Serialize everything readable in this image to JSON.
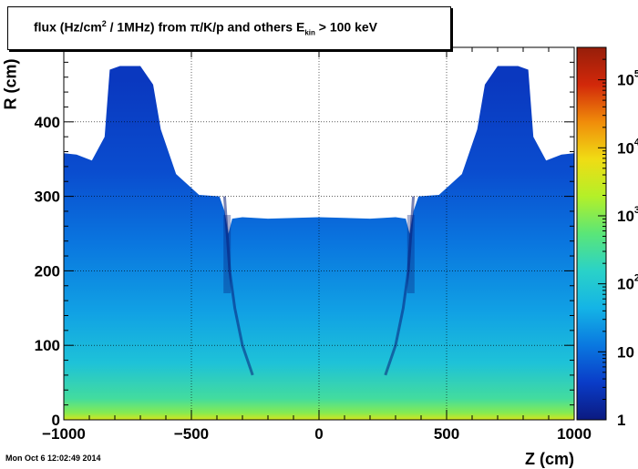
{
  "chart_data": {
    "type": "heatmap",
    "title": {
      "prefix": "flux (Hz/cm",
      "sup": "2",
      "mid": " / 1MHz) from  π/K/p and others  E",
      "sub": "kin",
      "suffix": " > 100 keV"
    },
    "xlabel": "Z (cm)",
    "ylabel": "R (cm)",
    "xlim": [
      -1000,
      1000
    ],
    "ylim": [
      0,
      500
    ],
    "x_ticks": [
      {
        "value": -1000,
        "label": "−1000"
      },
      {
        "value": -500,
        "label": "−500"
      },
      {
        "value": 0,
        "label": "0"
      },
      {
        "value": 500,
        "label": "500"
      },
      {
        "value": 1000,
        "label": "1000"
      }
    ],
    "y_ticks": [
      {
        "value": 0,
        "label": "0"
      },
      {
        "value": 100,
        "label": "100"
      },
      {
        "value": 200,
        "label": "200"
      },
      {
        "value": 300,
        "label": "300"
      },
      {
        "value": 400,
        "label": "400"
      }
    ],
    "grid": true,
    "colorbar": {
      "scale": "log",
      "range": [
        1,
        300000
      ],
      "ticks": [
        {
          "value": 1,
          "base": "1",
          "exp": ""
        },
        {
          "value": 10,
          "base": "10",
          "exp": ""
        },
        {
          "value": 100,
          "base": "10",
          "exp": "2"
        },
        {
          "value": 1000,
          "base": "10",
          "exp": "3"
        },
        {
          "value": 10000,
          "base": "10",
          "exp": "4"
        },
        {
          "value": 100000,
          "base": "10",
          "exp": "5"
        }
      ],
      "colors": [
        "#0b1a80",
        "#0a3cc8",
        "#0a78e0",
        "#14b4e6",
        "#2ad2c8",
        "#5ae678",
        "#b4f028",
        "#f0dc14",
        "#f08c0a",
        "#d2280a",
        "#961e0a"
      ]
    },
    "flux_profile": [
      {
        "r": 0,
        "flux": 4000
      },
      {
        "r": 10,
        "flux": 1000
      },
      {
        "r": 30,
        "flux": 300
      },
      {
        "r": 80,
        "flux": 80
      },
      {
        "r": 150,
        "flux": 30
      },
      {
        "r": 250,
        "flux": 12
      },
      {
        "r": 350,
        "flux": 5
      },
      {
        "r": 480,
        "flux": 3
      }
    ]
  },
  "footer": {
    "timestamp": "Mon Oct  6 12:02:49 2014"
  }
}
